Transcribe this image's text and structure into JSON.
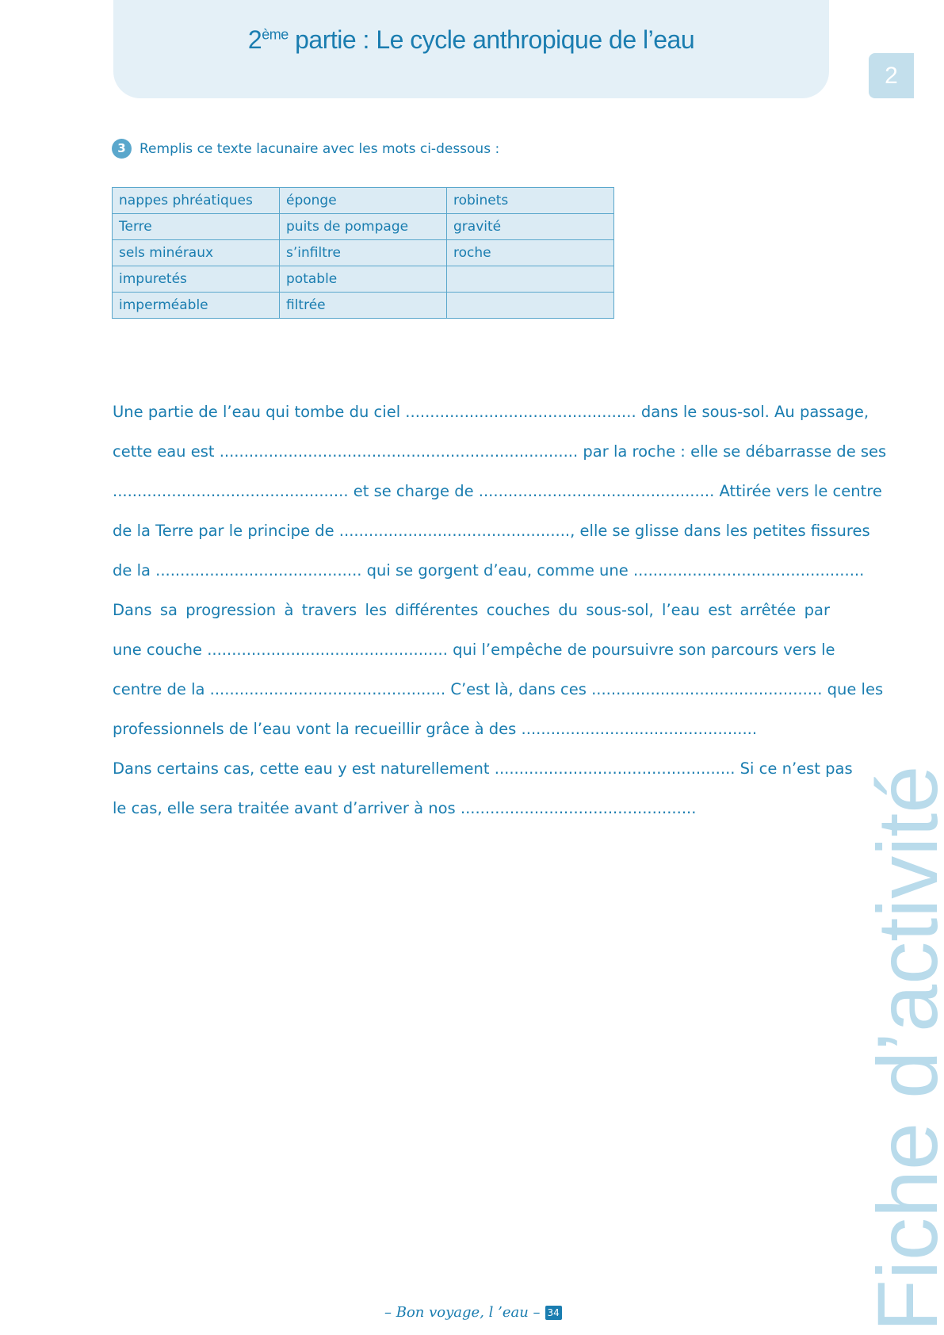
{
  "header": {
    "title_num": "2",
    "title_sup": "ème",
    "title_rest": " partie : Le cycle anthropique de l’eau"
  },
  "tab": {
    "label": "2"
  },
  "exercise": {
    "number": "3",
    "instruction": "Remplis ce texte lacunaire avec les mots ci-dessous :"
  },
  "word_table": [
    [
      "nappes phréatiques",
      "éponge",
      "robinets"
    ],
    [
      "Terre",
      "puits de pompage",
      "gravité"
    ],
    [
      "sels minéraux",
      "s’infiltre",
      "roche"
    ],
    [
      "impuretés",
      "potable",
      ""
    ],
    [
      "imperméable",
      "filtrée",
      ""
    ]
  ],
  "text_lines": [
    "Une partie de l’eau qui tombe du ciel ............................................... dans le sous-sol. Au passage,",
    "cette eau est ......................................................................... par la roche : elle se débarrasse de ses",
    "................................................ et se charge de ................................................ Attirée vers le centre",
    "de la Terre par le principe de ..............................................., elle se glisse dans les petites fissures",
    "de la .......................................... qui se gorgent d’eau, comme une ...............................................",
    "Dans sa progression à travers les différentes couches du sous-sol, l’eau est arrêtée par",
    "une couche ................................................. qui l’empêche de poursuivre son parcours vers le",
    "centre de la ................................................ C’est là, dans ces ............................................... que les",
    "professionnels de l’eau vont la recueillir grâce à des ................................................",
    "Dans certains cas, cette eau y est naturellement ................................................. Si ce n’est pas",
    "le cas, elle sera traitée avant d’arriver à nos ................................................"
  ],
  "side_label": "Fiche d’activité",
  "footer": {
    "text": "– Bon voyage, l ’eau –",
    "page": "34"
  },
  "colors": {
    "primary": "#1a7db0",
    "header_bg": "#e4f0f7",
    "table_bg": "#dbebf4",
    "side_text": "#b9dbeb"
  }
}
